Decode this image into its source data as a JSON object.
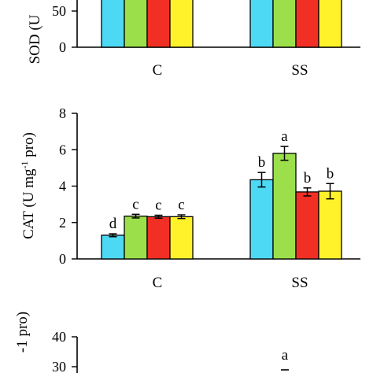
{
  "colors": [
    "#4dd9f4",
    "#9be04a",
    "#f22f24",
    "#fff22b"
  ],
  "chart_data": [
    {
      "type": "bar",
      "ylabel": "SOD (U",
      "ylim": [
        0,
        100
      ],
      "yticks": [
        "0",
        "50",
        ""
      ],
      "categories": [
        "C",
        "SS"
      ],
      "series": [
        {
          "values": [
            100,
            100
          ]
        },
        {
          "values": [
            100,
            100
          ]
        },
        {
          "values": [
            100,
            100
          ]
        },
        {
          "values": [
            100,
            100
          ]
        }
      ],
      "errors": [],
      "letters": []
    },
    {
      "type": "bar",
      "ylabel_main": "CAT (U mg",
      "ylabel_sup": "-1",
      "ylabel_tail": " pro)",
      "ylim": [
        0,
        8
      ],
      "yticks": [
        "0",
        "2",
        "4",
        "6",
        "8"
      ],
      "categories": [
        "C",
        "SS"
      ],
      "series": [
        {
          "values": [
            1.3,
            4.35
          ]
        },
        {
          "values": [
            2.35,
            5.8
          ]
        },
        {
          "values": [
            2.32,
            3.68
          ]
        },
        {
          "values": [
            2.32,
            3.72
          ]
        }
      ],
      "errors": [
        [
          0.08,
          0.4
        ],
        [
          0.1,
          0.38
        ],
        [
          0.08,
          0.22
        ],
        [
          0.1,
          0.42
        ]
      ],
      "letters": [
        [
          "d",
          "b"
        ],
        [
          "c",
          "a"
        ],
        [
          "c",
          "b"
        ],
        [
          "c",
          "b"
        ]
      ]
    },
    {
      "type": "bar",
      "ylabel": "-1 pro)",
      "ylim": [
        0,
        40
      ],
      "yticks": [
        "30",
        "40"
      ],
      "categories": [],
      "series": [],
      "letters": [
        "a"
      ]
    }
  ]
}
